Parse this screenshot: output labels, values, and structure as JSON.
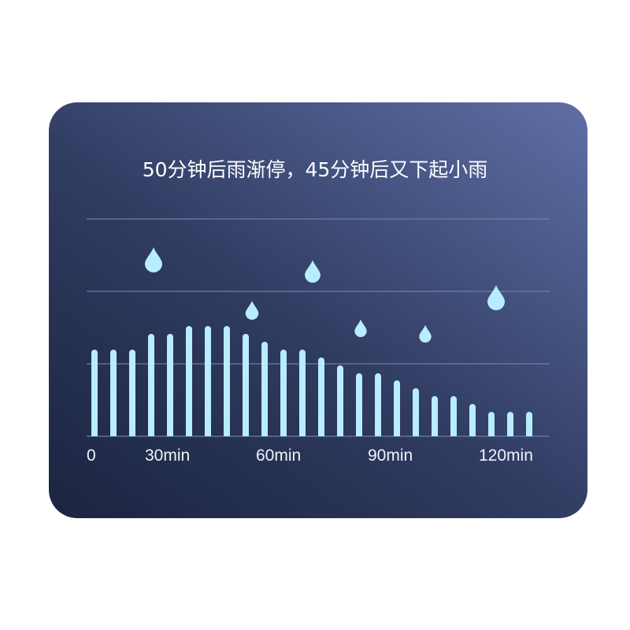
{
  "title": "50分钟后雨渐停，45分钟后又下起小雨",
  "colors": {
    "bar": "#b8ecff",
    "drop": "#b8ecff",
    "grid": "#7080a8"
  },
  "chart_data": {
    "type": "bar",
    "title": "50分钟后雨渐停，45分钟后又下起小雨",
    "xlabel": "",
    "ylabel": "",
    "x_tick_labels": [
      "0",
      "30min",
      "60min",
      "90min",
      "120min"
    ],
    "values": [
      11,
      11,
      11,
      13,
      13,
      14,
      14,
      14,
      13,
      12,
      11,
      11,
      10,
      9,
      8,
      8,
      7.1,
      6.1,
      5.1,
      5.1,
      4.1,
      3.1,
      3.1,
      3.1
    ],
    "ylim": [
      0,
      27.6
    ],
    "grid": true,
    "decorations": "raindrop-icons"
  }
}
